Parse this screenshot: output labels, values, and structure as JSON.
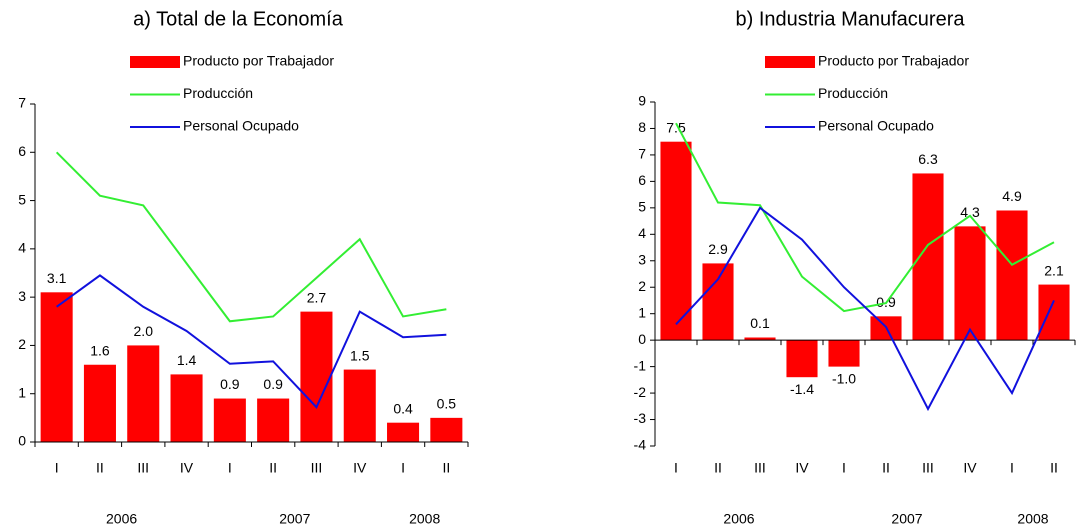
{
  "chart_data": [
    {
      "type": "bar",
      "title": "a) Total de la Economía",
      "categories": [
        "I",
        "II",
        "III",
        "IV",
        "I",
        "II",
        "III",
        "IV",
        "I",
        "II"
      ],
      "x_groups": [
        "2006",
        "2007",
        "2008"
      ],
      "series": [
        {
          "name": "Producto por Trabajador",
          "type": "bar",
          "color": "#ff0000",
          "values": [
            3.1,
            1.6,
            2.0,
            1.4,
            0.9,
            0.9,
            2.7,
            1.5,
            0.4,
            0.5
          ],
          "value_labels": [
            "3.1",
            "1.6",
            "2.0",
            "1.4",
            "0.9",
            "0.9",
            "2.7",
            "1.5",
            "0.4",
            "0.5"
          ]
        },
        {
          "name": "Producción",
          "type": "line",
          "color": "#33ee33",
          "values": [
            6.0,
            5.1,
            4.9,
            3.7,
            2.5,
            2.6,
            3.4,
            4.2,
            2.6,
            2.75
          ]
        },
        {
          "name": "Personal Ocupado",
          "type": "line",
          "color": "#1111dd",
          "values": [
            2.8,
            3.45,
            2.8,
            2.3,
            1.62,
            1.67,
            0.72,
            2.7,
            2.17,
            2.22
          ]
        }
      ],
      "ylim": [
        0,
        7
      ],
      "yticks": [
        0,
        1,
        2,
        3,
        4,
        5,
        6,
        7
      ]
    },
    {
      "type": "bar",
      "title": "b) Industria Manufacurera",
      "categories": [
        "I",
        "II",
        "III",
        "IV",
        "I",
        "II",
        "III",
        "IV",
        "I",
        "II"
      ],
      "x_groups": [
        "2006",
        "2007",
        "2008"
      ],
      "series": [
        {
          "name": "Producto por Trabajador",
          "type": "bar",
          "color": "#ff0000",
          "values": [
            7.5,
            2.9,
            0.1,
            -1.4,
            -1.0,
            0.9,
            6.3,
            4.3,
            4.9,
            2.1
          ],
          "value_labels": [
            "7.5",
            "2.9",
            "0.1",
            "-1.4",
            "-1.0",
            "0.9",
            "6.3",
            "4.3",
            "4.9",
            "2.1"
          ]
        },
        {
          "name": "Producción",
          "type": "line",
          "color": "#33ee33",
          "values": [
            8.2,
            5.2,
            5.1,
            2.4,
            1.1,
            1.4,
            3.6,
            4.7,
            2.85,
            3.7
          ]
        },
        {
          "name": "Personal Ocupado",
          "type": "line",
          "color": "#1111dd",
          "values": [
            0.6,
            2.3,
            5.0,
            3.8,
            2.0,
            0.5,
            -2.6,
            0.4,
            -2.0,
            1.5
          ]
        }
      ],
      "ylim": [
        -4,
        9
      ],
      "yticks": [
        -4,
        -3,
        -2,
        -1,
        0,
        1,
        2,
        3,
        4,
        5,
        6,
        7,
        8,
        9
      ]
    }
  ]
}
